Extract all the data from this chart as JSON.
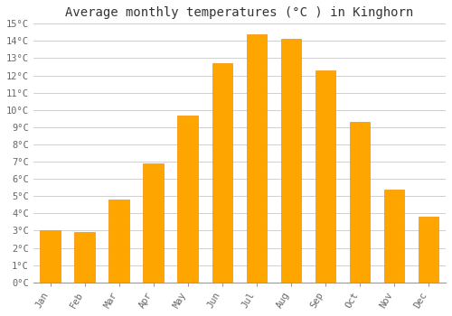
{
  "title": "Average monthly temperatures (°C ) in Kinghorn",
  "months": [
    "Jan",
    "Feb",
    "Mar",
    "Apr",
    "May",
    "Jun",
    "Jul",
    "Aug",
    "Sep",
    "Oct",
    "Nov",
    "Dec"
  ],
  "values": [
    3.0,
    2.9,
    4.8,
    6.9,
    9.7,
    12.7,
    14.4,
    14.1,
    12.3,
    9.3,
    5.4,
    3.8
  ],
  "bar_color": "#FFA500",
  "bar_edge_color": "#F59000",
  "ylim": [
    0,
    15
  ],
  "yticks": [
    0,
    1,
    2,
    3,
    4,
    5,
    6,
    7,
    8,
    9,
    10,
    11,
    12,
    13,
    14,
    15
  ],
  "grid_color": "#d0d0d0",
  "background_color": "#ffffff",
  "title_fontsize": 10,
  "tick_fontsize": 7.5,
  "font_family": "monospace"
}
